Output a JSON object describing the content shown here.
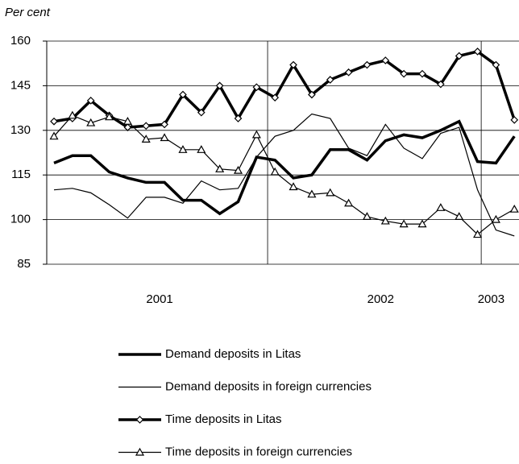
{
  "chart_data": {
    "type": "line",
    "ylabel": "Per cent",
    "categories": [
      null,
      null,
      null,
      null,
      null,
      null,
      "2001",
      null,
      null,
      null,
      null,
      null,
      null,
      null,
      null,
      null,
      null,
      null,
      "2002",
      null,
      null,
      null,
      null,
      null,
      "2003",
      null
    ],
    "ylim": [
      85,
      160
    ],
    "yticks": [
      85,
      100,
      115,
      130,
      145,
      160
    ],
    "grid": true,
    "series": [
      {
        "name": "Demand deposits in Litas",
        "color": "#000000",
        "width": 3.5,
        "marker": "none",
        "values": [
          119,
          121.5,
          121.5,
          116,
          114,
          112.5,
          112.5,
          106.5,
          106.5,
          102,
          106,
          121,
          120,
          114,
          115,
          123.5,
          123.5,
          120,
          126.5,
          128.5,
          127.5,
          130,
          133,
          119.5,
          119,
          128
        ]
      },
      {
        "name": "Demand deposits in foreign currencies",
        "color": "#000000",
        "width": 1.2,
        "marker": "none",
        "values": [
          110,
          110.5,
          109,
          105,
          100.5,
          107.5,
          107.5,
          105.5,
          113,
          110,
          110.5,
          121,
          128,
          130,
          135.5,
          134,
          124,
          121.5,
          132,
          124,
          120.5,
          129,
          131,
          110,
          96.5,
          94.5
        ]
      },
      {
        "name": "Time deposits in Litas",
        "color": "#000000",
        "width": 3.5,
        "marker": "diamond",
        "values": [
          133,
          134,
          140,
          135,
          131,
          131.5,
          132,
          142,
          136,
          145,
          134,
          144.5,
          141,
          152,
          142,
          147,
          149.5,
          152,
          153.5,
          149,
          149,
          145.5,
          155,
          156.5,
          152,
          133.5
        ]
      },
      {
        "name": "Time deposits in foreign currencies",
        "color": "#000000",
        "width": 1.2,
        "marker": "triangle",
        "values": [
          128,
          135,
          132.5,
          134.5,
          133,
          127,
          127.5,
          123.5,
          123.5,
          117,
          116.5,
          128.5,
          116,
          111,
          108.5,
          109,
          105.5,
          101,
          99.5,
          98.5,
          98.5,
          104,
          101,
          95,
          100,
          103.5
        ]
      }
    ]
  }
}
